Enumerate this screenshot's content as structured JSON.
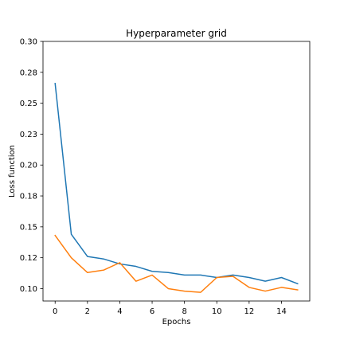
{
  "chart_data": {
    "type": "line",
    "title": "Hyperparameter grid",
    "xlabel": "Epochs",
    "ylabel": "Loss function",
    "xlim": [
      -0.75,
      15.75
    ],
    "ylim": [
      0.09,
      0.3
    ],
    "x_ticks": [
      0,
      2,
      4,
      6,
      8,
      10,
      12,
      14
    ],
    "x_tick_labels": [
      "0",
      "2",
      "4",
      "6",
      "8",
      "10",
      "12",
      "14"
    ],
    "y_ticks": [
      0.1,
      0.125,
      0.15,
      0.175,
      0.2,
      0.225,
      0.25,
      0.275,
      0.3
    ],
    "y_tick_labels": [
      "0.10",
      "0.12",
      "0.15",
      "0.18",
      "0.20",
      "0.23",
      "0.25",
      "0.28",
      "0.30"
    ],
    "grid": false,
    "x": [
      0,
      1,
      2,
      3,
      4,
      5,
      6,
      7,
      8,
      9,
      10,
      11,
      12,
      13,
      14,
      15
    ],
    "series": [
      {
        "color": "#1f77b4",
        "values": [
          0.266,
          0.144,
          0.126,
          0.124,
          0.12,
          0.118,
          0.114,
          0.113,
          0.111,
          0.111,
          0.109,
          0.111,
          0.109,
          0.106,
          0.109,
          0.104
        ]
      },
      {
        "color": "#ff7f0e",
        "values": [
          0.143,
          0.125,
          0.113,
          0.115,
          0.121,
          0.106,
          0.111,
          0.1,
          0.098,
          0.097,
          0.109,
          0.11,
          0.101,
          0.098,
          0.101,
          0.099
        ]
      }
    ]
  }
}
